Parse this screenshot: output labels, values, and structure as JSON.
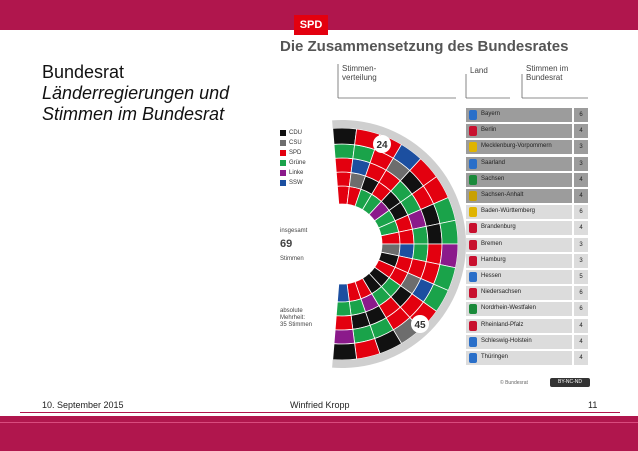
{
  "logo": "SPD",
  "title": {
    "line1": "Bundesrat",
    "line2": "Länderregierungen und",
    "line3": "Stimmen im Bundesrat"
  },
  "footer": {
    "date": "10. September 2015",
    "author": "Winfried Kropp",
    "page": "11"
  },
  "graphic": {
    "title": "Die Zusammensetzung des Bundesrates",
    "col_distribution": "Stimmen-\nverteilung",
    "col_land": "Land",
    "col_votes": "Stimmen im\nBundesrat",
    "legend": [
      {
        "label": "CDU",
        "color": "#111111"
      },
      {
        "label": "CSU",
        "color": "#6d6d6d"
      },
      {
        "label": "SPD",
        "color": "#e3000f"
      },
      {
        "label": "Grüne",
        "color": "#1aa34a"
      },
      {
        "label": "Linke",
        "color": "#8b1a8b"
      },
      {
        "label": "SSW",
        "color": "#1c4fa0"
      }
    ],
    "total_label": "insgesamt",
    "total_value": "69",
    "total_unit": "Stimmen",
    "majority_text": "absolute\nMehrheit:\n35 Stimmen",
    "marker_24": "24",
    "marker_45": "45",
    "states": [
      {
        "name": "Bayern",
        "votes": "6",
        "shade": "dark"
      },
      {
        "name": "Berlin",
        "votes": "4",
        "shade": "dark"
      },
      {
        "name": "Mecklenburg-Vorpommern",
        "votes": "3",
        "shade": "dark"
      },
      {
        "name": "Saarland",
        "votes": "3",
        "shade": "dark"
      },
      {
        "name": "Sachsen",
        "votes": "4",
        "shade": "dark"
      },
      {
        "name": "Sachsen-Anhalt",
        "votes": "4",
        "shade": "dark"
      },
      {
        "name": "Baden-Württemberg",
        "votes": "6",
        "shade": "light"
      },
      {
        "name": "Brandenburg",
        "votes": "4",
        "shade": "light"
      },
      {
        "name": "Bremen",
        "votes": "3",
        "shade": "light"
      },
      {
        "name": "Hamburg",
        "votes": "3",
        "shade": "light"
      },
      {
        "name": "Hessen",
        "votes": "5",
        "shade": "light"
      },
      {
        "name": "Niedersachsen",
        "votes": "6",
        "shade": "light"
      },
      {
        "name": "Nordrhein-Westfalen",
        "votes": "6",
        "shade": "light"
      },
      {
        "name": "Rheinland-Pfalz",
        "votes": "4",
        "shade": "light"
      },
      {
        "name": "Schleswig-Holstein",
        "votes": "4",
        "shade": "light"
      },
      {
        "name": "Thüringen",
        "votes": "4",
        "shade": "light"
      }
    ],
    "credit": "© Bundesrat",
    "license": "BY-NC-ND"
  }
}
